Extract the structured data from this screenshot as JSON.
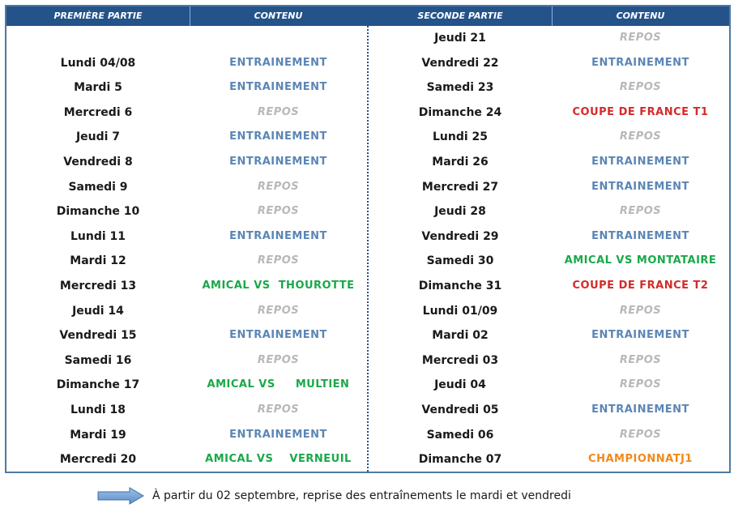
{
  "header": {
    "col1": "PREMIÈRE PARTIE",
    "col2": "CONTENU",
    "col3": "SECONDE PARTIE",
    "col4": "CONTENU"
  },
  "colors": {
    "header_bg": "#24538a",
    "entrainement": "#5b86b5",
    "repos": "#b8b8b8",
    "amical": "#1aa84a",
    "coupe": "#d42a2a",
    "championnat": "#f08a1a"
  },
  "left": [
    {
      "day": "",
      "activity": "",
      "type": "empty"
    },
    {
      "day": "Lundi 04/08",
      "activity": "ENTRAINEMENT",
      "type": "train"
    },
    {
      "day": "Mardi 5",
      "activity": "ENTRAINEMENT",
      "type": "train"
    },
    {
      "day": "Mercredi 6",
      "activity": "REPOS",
      "type": "rest"
    },
    {
      "day": "Jeudi 7",
      "activity": "ENTRAINEMENT",
      "type": "train"
    },
    {
      "day": "Vendredi 8",
      "activity": "ENTRAINEMENT",
      "type": "train"
    },
    {
      "day": "Samedi 9",
      "activity": "REPOS",
      "type": "rest"
    },
    {
      "day": "Dimanche 10",
      "activity": "REPOS",
      "type": "rest"
    },
    {
      "day": "Lundi 11",
      "activity": "ENTRAINEMENT",
      "type": "train"
    },
    {
      "day": "Mardi 12",
      "activity": "REPOS",
      "type": "rest"
    },
    {
      "day": "Mercredi 13",
      "activity": "AMICAL VS  THOUROTTE",
      "type": "amical"
    },
    {
      "day": "Jeudi 14",
      "activity": "REPOS",
      "type": "rest"
    },
    {
      "day": "Vendredi 15",
      "activity": "ENTRAINEMENT",
      "type": "train"
    },
    {
      "day": "Samedi 16",
      "activity": "REPOS",
      "type": "rest"
    },
    {
      "day": "Dimanche 17",
      "activity": "AMICAL VS     MULTIEN",
      "type": "amical"
    },
    {
      "day": "Lundi 18",
      "activity": "REPOS",
      "type": "rest"
    },
    {
      "day": "Mardi 19",
      "activity": "ENTRAINEMENT",
      "type": "train"
    },
    {
      "day": "Mercredi 20",
      "activity": "AMICAL VS    VERNEUIL",
      "type": "amical"
    }
  ],
  "right": [
    {
      "day": "Jeudi 21",
      "activity": "REPOS",
      "type": "rest"
    },
    {
      "day": "Vendredi 22",
      "activity": "ENTRAINEMENT",
      "type": "train"
    },
    {
      "day": "Samedi 23",
      "activity": "REPOS",
      "type": "rest"
    },
    {
      "day": "Dimanche 24",
      "activity": "COUPE DE FRANCE T1",
      "type": "cup"
    },
    {
      "day": "Lundi 25",
      "activity": "REPOS",
      "type": "rest"
    },
    {
      "day": "Mardi 26",
      "activity": "ENTRAINEMENT",
      "type": "train"
    },
    {
      "day": "Mercredi 27",
      "activity": "ENTRAINEMENT",
      "type": "train"
    },
    {
      "day": "Jeudi 28",
      "activity": "REPOS",
      "type": "rest"
    },
    {
      "day": "Vendredi 29",
      "activity": "ENTRAINEMENT",
      "type": "train"
    },
    {
      "day": "Samedi 30",
      "activity": "AMICAL VS MONTATAIRE",
      "type": "amical"
    },
    {
      "day": "Dimanche 31",
      "activity": "COUPE DE FRANCE T2",
      "type": "cup"
    },
    {
      "day": "Lundi 01/09",
      "activity": "REPOS",
      "type": "rest"
    },
    {
      "day": "Mardi 02",
      "activity": "ENTRAINEMENT",
      "type": "train"
    },
    {
      "day": "Mercredi 03",
      "activity": "REPOS",
      "type": "rest"
    },
    {
      "day": "Jeudi 04",
      "activity": "REPOS",
      "type": "rest"
    },
    {
      "day": "Vendredi 05",
      "activity": "ENTRAINEMENT",
      "type": "train"
    },
    {
      "day": "Samedi 06",
      "activity": "REPOS",
      "type": "rest"
    },
    {
      "day": "Dimanche 07",
      "activity": "CHAMPIONNATJ1",
      "type": "champ"
    }
  ],
  "note": {
    "icon": "right-arrow-icon",
    "text": "À partir du 02 septembre, reprise des entraînements le mardi et vendredi"
  }
}
